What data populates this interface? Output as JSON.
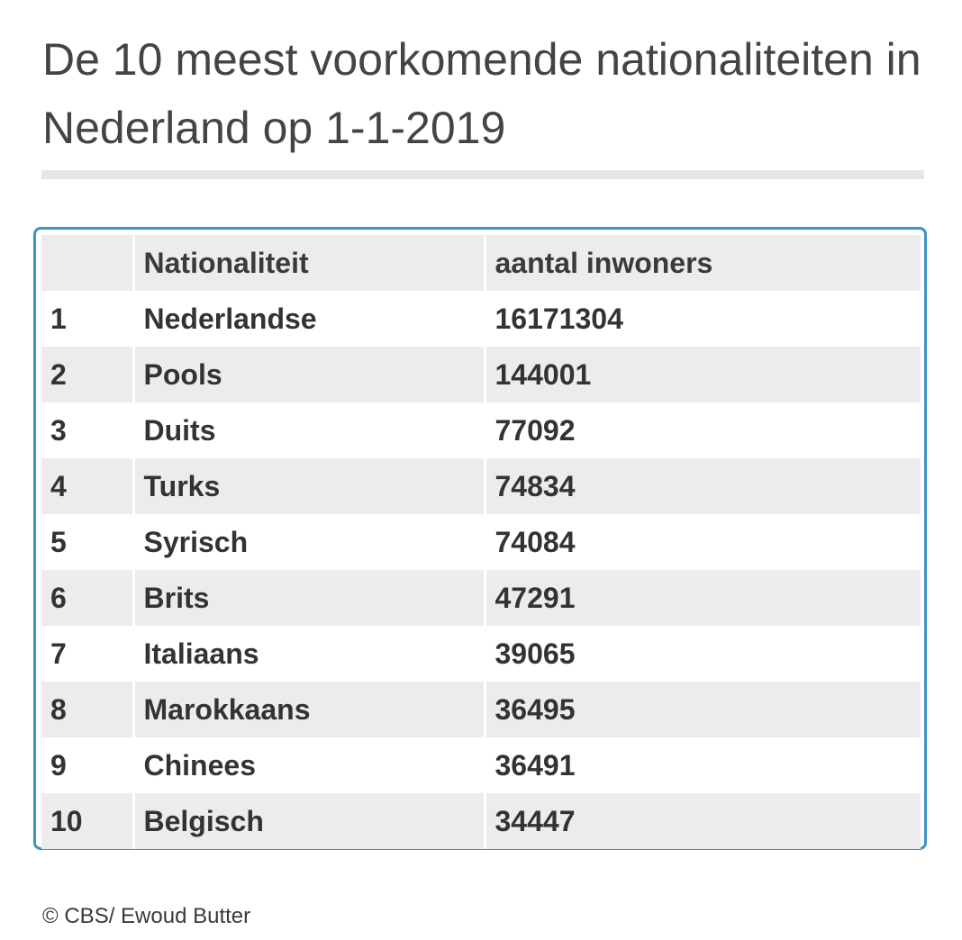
{
  "title": "De 10 meest voorkomende nationaliteiten in Nederland op 1-1-2019",
  "footer": "© CBS/ Ewoud Butter",
  "colors": {
    "frame_border": "#3d92c6",
    "stripe": "#ececec",
    "title_rule": "#e6e6e6"
  },
  "chart_data": {
    "type": "table",
    "title": "De 10 meest voorkomende nationaliteiten in Nederland op 1-1-2019",
    "columns": [
      "",
      "Nationaliteit",
      "aantal inwoners"
    ],
    "rows": [
      [
        "1",
        "Nederlandse",
        "16171304"
      ],
      [
        "2",
        "Pools",
        "144001"
      ],
      [
        "3",
        "Duits",
        "77092"
      ],
      [
        "4",
        "Turks",
        "74834"
      ],
      [
        "5",
        "Syrisch",
        "74084"
      ],
      [
        "6",
        "Brits",
        "47291"
      ],
      [
        "7",
        "Italiaans",
        "39065"
      ],
      [
        "8",
        "Marokkaans",
        "36495"
      ],
      [
        "9",
        "Chinees",
        "36491"
      ],
      [
        "10",
        "Belgisch",
        "34447"
      ]
    ]
  }
}
